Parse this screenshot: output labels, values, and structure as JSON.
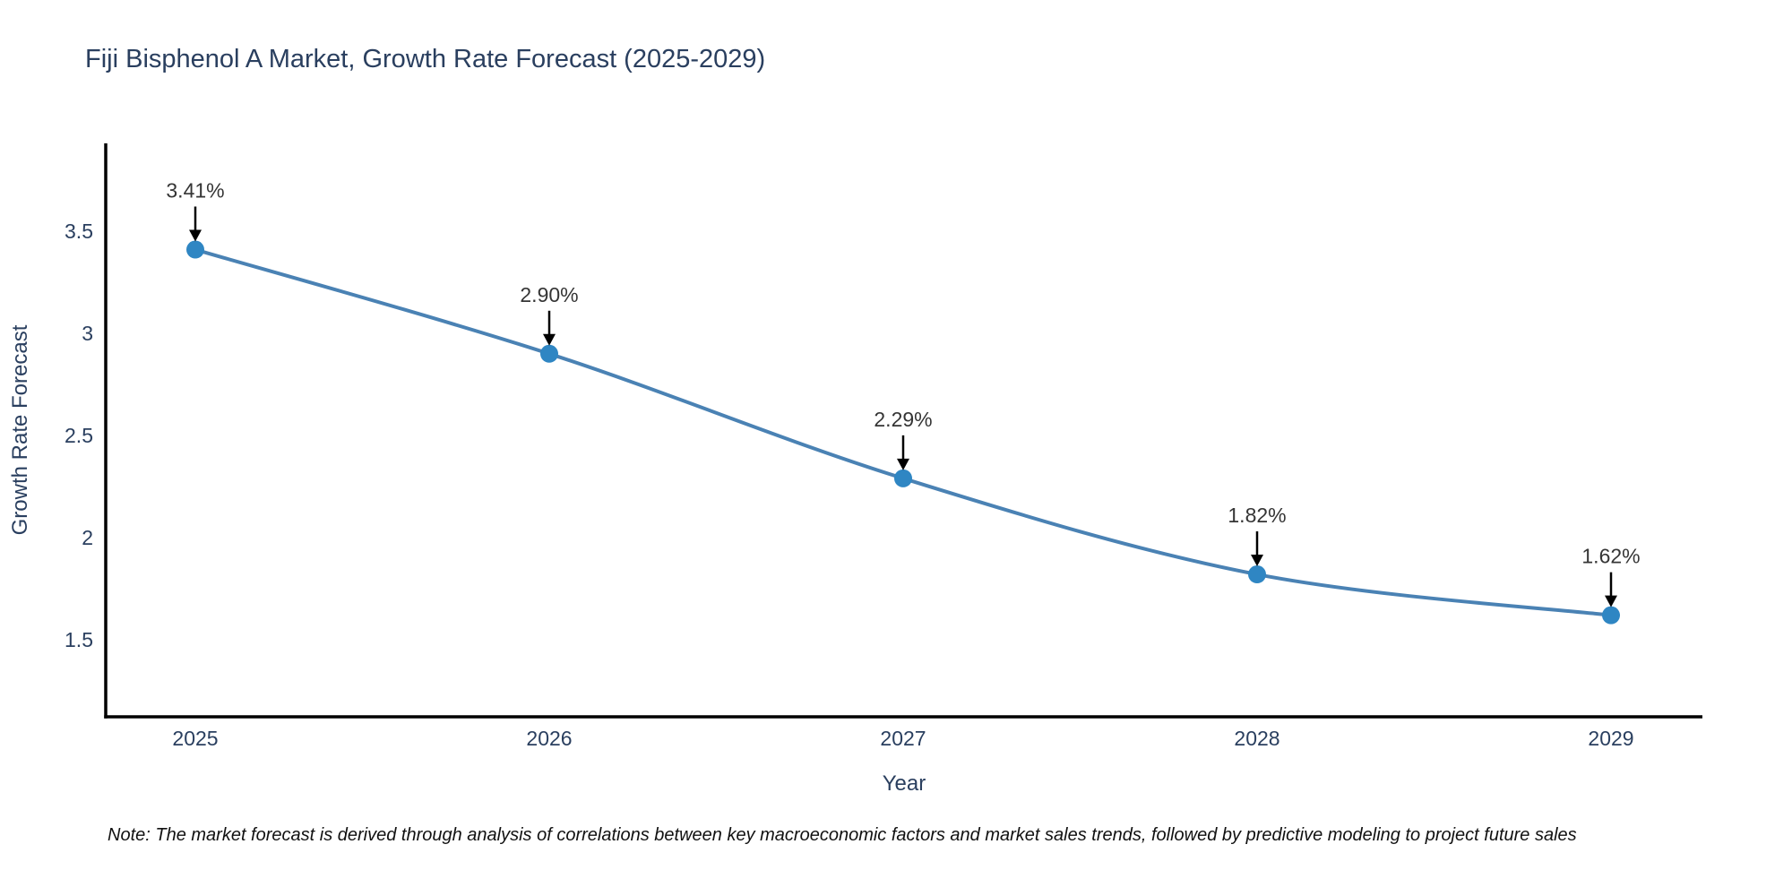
{
  "title": "Fiji Bisphenol A Market, Growth Rate Forecast (2025-2029)",
  "note": "Note: The market forecast is derived through analysis of correlations between key macroeconomic factors and market sales trends, followed by predictive modeling to project future sales",
  "chart_data": {
    "type": "line",
    "title": "Fiji Bisphenol A Market, Growth Rate Forecast (2025-2029)",
    "xlabel": "Year",
    "ylabel": "Growth Rate Forecast",
    "categories": [
      "2025",
      "2026",
      "2027",
      "2028",
      "2029"
    ],
    "series": [
      {
        "name": "Growth Rate Forecast",
        "values": [
          3.41,
          2.9,
          2.29,
          1.82,
          1.62
        ]
      }
    ],
    "point_labels": [
      "3.41%",
      "2.90%",
      "2.29%",
      "1.82%",
      "1.62%"
    ],
    "yticks": [
      1.5,
      2,
      2.5,
      3,
      3.5
    ],
    "ylim": [
      1.12,
      3.93
    ],
    "grid": false,
    "legend": "none",
    "colors": {
      "line": "#4a82b4",
      "marker": "#2f86c3",
      "axis": "#000000",
      "tick_text": "#2a3f5f",
      "annotation_text": "#353535",
      "arrow": "#000000",
      "background": "#ffffff"
    }
  }
}
